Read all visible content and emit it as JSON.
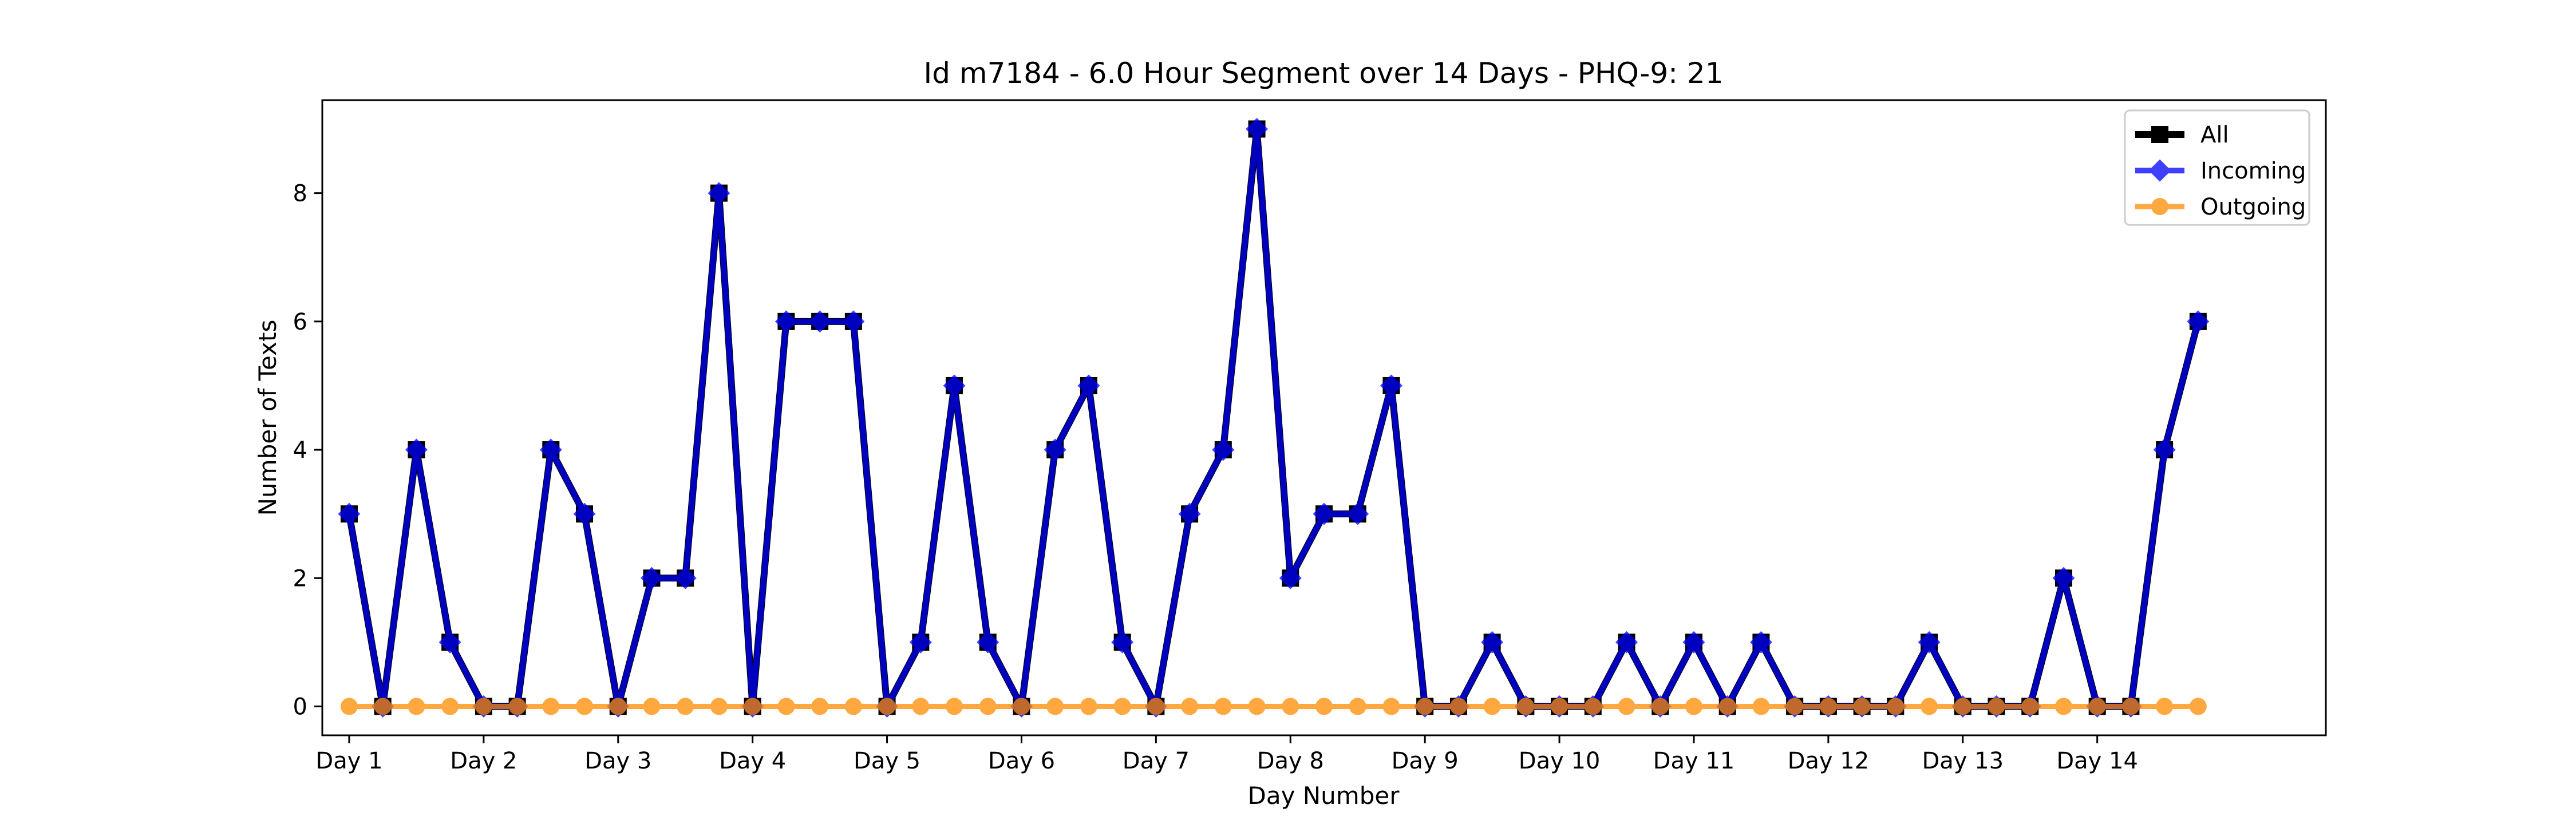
{
  "chart_data": {
    "type": "line",
    "title": "Id m7184 - 6.0 Hour Segment over 14 Days - PHQ-9: 21",
    "xlabel": "Day Number",
    "ylabel": "Number of Texts",
    "xlim": [
      -0.2,
      14.7
    ],
    "ylim": [
      -0.45,
      9.45
    ],
    "grid": false,
    "legend_position": "top-right",
    "x_ticks": [
      {
        "value": 0,
        "label": "Day 1"
      },
      {
        "value": 1,
        "label": "Day 2"
      },
      {
        "value": 2,
        "label": "Day 3"
      },
      {
        "value": 3,
        "label": "Day 4"
      },
      {
        "value": 4,
        "label": "Day 5"
      },
      {
        "value": 5,
        "label": "Day 6"
      },
      {
        "value": 6,
        "label": "Day 7"
      },
      {
        "value": 7,
        "label": "Day 8"
      },
      {
        "value": 8,
        "label": "Day 9"
      },
      {
        "value": 9,
        "label": "Day 10"
      },
      {
        "value": 10,
        "label": "Day 11"
      },
      {
        "value": 11,
        "label": "Day 12"
      },
      {
        "value": 12,
        "label": "Day 13"
      },
      {
        "value": 13,
        "label": "Day 14"
      }
    ],
    "y_ticks": [
      0,
      2,
      4,
      6,
      8
    ],
    "x": [
      0,
      0.25,
      0.5,
      0.75,
      1,
      1.25,
      1.5,
      1.75,
      2,
      2.25,
      2.5,
      2.75,
      3,
      3.25,
      3.5,
      3.75,
      4,
      4.25,
      4.5,
      4.75,
      5,
      5.25,
      5.5,
      5.75,
      6,
      6.25,
      6.5,
      6.75,
      7,
      7.25,
      7.5,
      7.75,
      8,
      8.25,
      8.5,
      8.75,
      9,
      9.25,
      9.5,
      9.75,
      10,
      10.25,
      10.5,
      10.75,
      11,
      11.25,
      11.5,
      11.75,
      12,
      12.25,
      12.5,
      12.75,
      13,
      13.25,
      13.5,
      13.75
    ],
    "series": [
      {
        "name": "All",
        "color": "#000000",
        "marker": "square",
        "values": [
          3,
          0,
          4,
          1,
          0,
          0,
          4,
          3,
          0,
          2,
          2,
          8,
          0,
          6,
          6,
          6,
          0,
          1,
          5,
          1,
          0,
          4,
          5,
          1,
          0,
          3,
          4,
          9,
          2,
          3,
          3,
          5,
          0,
          0,
          1,
          0,
          0,
          0,
          1,
          0,
          1,
          0,
          1,
          0,
          0,
          0,
          0,
          1,
          0,
          0,
          0,
          2,
          0,
          0,
          4,
          6
        ]
      },
      {
        "name": "Incoming",
        "color": "#0000ff",
        "marker": "diamond",
        "values": [
          3,
          0,
          4,
          1,
          0,
          0,
          4,
          3,
          0,
          2,
          2,
          8,
          0,
          6,
          6,
          6,
          0,
          1,
          5,
          1,
          0,
          4,
          5,
          1,
          0,
          3,
          4,
          9,
          2,
          3,
          3,
          5,
          0,
          0,
          1,
          0,
          0,
          0,
          1,
          0,
          1,
          0,
          1,
          0,
          0,
          0,
          0,
          1,
          0,
          0,
          0,
          2,
          0,
          0,
          4,
          6
        ]
      },
      {
        "name": "Outgoing",
        "color": "#ff8c00",
        "marker": "circle",
        "values": [
          0,
          0,
          0,
          0,
          0,
          0,
          0,
          0,
          0,
          0,
          0,
          0,
          0,
          0,
          0,
          0,
          0,
          0,
          0,
          0,
          0,
          0,
          0,
          0,
          0,
          0,
          0,
          0,
          0,
          0,
          0,
          0,
          0,
          0,
          0,
          0,
          0,
          0,
          0,
          0,
          0,
          0,
          0,
          0,
          0,
          0,
          0,
          0,
          0,
          0,
          0,
          0,
          0,
          0,
          0,
          0
        ]
      }
    ]
  }
}
